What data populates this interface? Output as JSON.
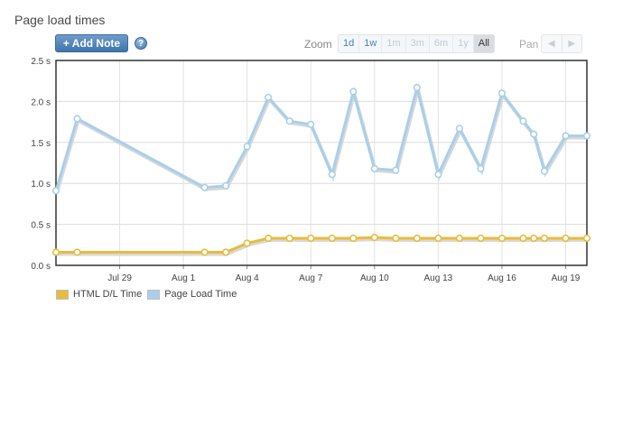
{
  "title": "Page load times",
  "toolbar": {
    "add_note_label": "+ Add Note",
    "help_glyph": "?",
    "zoom_label": "Zoom",
    "zoom_options": [
      "1d",
      "1w",
      "1m",
      "3m",
      "6m",
      "1y",
      "All"
    ],
    "zoom_enabled": [
      "1d",
      "1w"
    ],
    "zoom_selected": "All",
    "pan_label": "Pan"
  },
  "colors": {
    "page_load": "#a9cfea",
    "html_dl": "#e8bc3c"
  },
  "chart_data": {
    "type": "line",
    "x_unit": "day",
    "xlabel": "",
    "ylabel": "",
    "ylim": [
      0,
      2.5
    ],
    "y_ticks": [
      "0.0 s",
      "0.5 s",
      "1.0 s",
      "1.5 s",
      "2.0 s",
      "2.5 s"
    ],
    "x_ticks": [
      "Jul 29",
      "Aug 1",
      "Aug 4",
      "Aug 7",
      "Aug 10",
      "Aug 13",
      "Aug 16",
      "Aug 19"
    ],
    "x_tick_dates": [
      "Jul 29",
      "Aug 1",
      "Aug 4",
      "Aug 7",
      "Aug 10",
      "Aug 13",
      "Aug 16",
      "Aug 19"
    ],
    "grid": true,
    "legend": "bottom-left",
    "x_dates": [
      "Jul 26",
      "Jul 27",
      "Aug 2",
      "Aug 3",
      "Aug 4",
      "Aug 5",
      "Aug 6",
      "Aug 7",
      "Aug 8",
      "Aug 9",
      "Aug 10",
      "Aug 11",
      "Aug 12",
      "Aug 13",
      "Aug 14",
      "Aug 15",
      "Aug 16",
      "Aug 17",
      "Aug 17",
      "Aug 18",
      "Aug 19",
      "Aug 20"
    ],
    "x_positions": [
      26,
      27,
      33,
      34,
      35,
      36,
      37,
      38,
      39,
      40,
      41,
      42,
      43,
      44,
      45,
      46,
      47,
      48,
      48.5,
      49,
      50,
      51
    ],
    "series": [
      {
        "name": "HTML D/L Time",
        "values": [
          0.16,
          0.16,
          0.16,
          0.16,
          0.27,
          0.33,
          0.33,
          0.33,
          0.33,
          0.33,
          0.34,
          0.33,
          0.33,
          0.33,
          0.33,
          0.33,
          0.33,
          0.33,
          0.33,
          0.33,
          0.33,
          0.33
        ]
      },
      {
        "name": "Page Load Time",
        "values": [
          0.91,
          1.79,
          0.95,
          0.97,
          1.45,
          2.05,
          1.76,
          1.72,
          1.11,
          2.12,
          1.18,
          1.16,
          2.17,
          1.11,
          1.67,
          1.18,
          2.1,
          1.76,
          1.6,
          1.15,
          1.58,
          1.58
        ]
      }
    ]
  }
}
